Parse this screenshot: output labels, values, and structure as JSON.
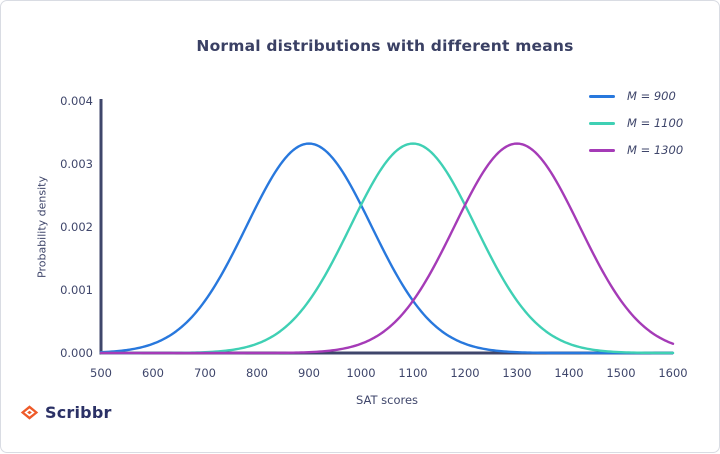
{
  "title": "Normal distributions with different means",
  "logo": {
    "text": "Scribbr",
    "icon": "graduation-cap-icon",
    "icon_color": "#ee5a29",
    "text_color": "#2b3166"
  },
  "chart_data": {
    "type": "line",
    "title": "Normal distributions with different means",
    "xlabel": "SAT scores",
    "ylabel": "Probability density",
    "xlim": [
      500,
      1600
    ],
    "ylim": [
      0,
      0.004
    ],
    "x_ticks": [
      500,
      600,
      700,
      800,
      900,
      1000,
      1100,
      1200,
      1300,
      1400,
      1500,
      1600
    ],
    "y_ticks": [
      {
        "label": "0.000",
        "v": 0.0
      },
      {
        "label": "0.001",
        "v": 0.001
      },
      {
        "label": "0.002",
        "v": 0.002
      },
      {
        "label": "0.003",
        "v": 0.003
      },
      {
        "label": "0.004",
        "v": 0.004
      }
    ],
    "curve_model": "normal_pdf",
    "series": [
      {
        "name": "M = 900",
        "mean": 900,
        "sd": 120,
        "peak_density": 0.00332,
        "color": "#2878dd"
      },
      {
        "name": "M = 1100",
        "mean": 1100,
        "sd": 120,
        "peak_density": 0.00332,
        "color": "#3fd0b4"
      },
      {
        "name": "M = 1300",
        "mean": 1300,
        "sd": 120,
        "peak_density": 0.00332,
        "color": "#a53bb7"
      }
    ],
    "legend_position": "top-right",
    "axis_color": "#3f466b",
    "tick_color": "#3f466b",
    "grid": false
  }
}
